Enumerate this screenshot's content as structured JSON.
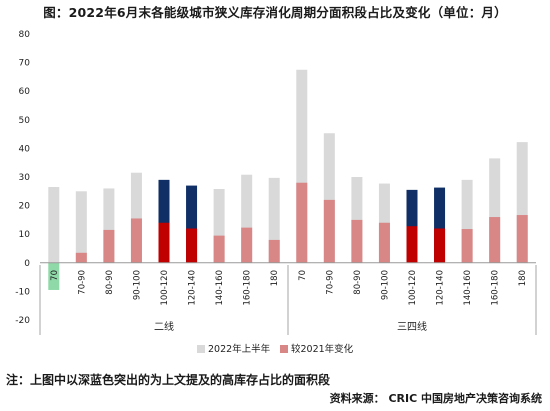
{
  "chart_data": {
    "type": "bar",
    "title": "图：2022年6月末各能级城市狭义库存消化周期分面积段占比及变化（单位：月）",
    "ylim": [
      -20,
      80
    ],
    "yticks": [
      -20,
      -10,
      0,
      10,
      20,
      30,
      40,
      50,
      60,
      70,
      80
    ],
    "grid": false,
    "legend_position": "bottom",
    "groups": [
      {
        "name": "二线",
        "categories": [
          "70",
          "70-90",
          "80-90",
          "90-100",
          "100-120",
          "120-140",
          "140-160",
          "160-180",
          "180"
        ]
      },
      {
        "name": "三四线",
        "categories": [
          "70",
          "70-90",
          "80-90",
          "90-100",
          "100-120",
          "120-140",
          "140-160",
          "160-180",
          "180"
        ]
      }
    ],
    "categories": [
      "70",
      "70-90",
      "80-90",
      "90-100",
      "100-120",
      "120-140",
      "140-160",
      "160-180",
      "180",
      "70",
      "70-90",
      "80-90",
      "90-100",
      "100-120",
      "120-140",
      "140-160",
      "160-180",
      "180"
    ],
    "series": [
      {
        "name": "2022年上半年",
        "color": "#d9d9d9",
        "values": [
          26.5,
          25,
          26,
          31.5,
          29,
          27,
          25.8,
          30.8,
          29.7,
          67.5,
          45.3,
          30,
          27.7,
          25.5,
          26.3,
          29,
          36.5,
          42.2
        ],
        "highlight": [
          false,
          false,
          false,
          false,
          true,
          true,
          false,
          false,
          false,
          false,
          false,
          false,
          false,
          true,
          true,
          false,
          false,
          false
        ],
        "highlight_color": "#0f2f66"
      },
      {
        "name": "较2021年变化",
        "color": "#d98686",
        "values": [
          -9.5,
          3.5,
          11.5,
          15.5,
          14,
          12,
          9.5,
          12.3,
          8,
          28,
          22,
          15,
          14,
          12.8,
          12,
          11.8,
          16,
          16.7
        ],
        "highlight": [
          false,
          false,
          false,
          false,
          true,
          true,
          false,
          false,
          false,
          false,
          false,
          false,
          false,
          true,
          true,
          false,
          false,
          false
        ],
        "highlight_color": "#c00000",
        "negative_color": "#8fd9a8"
      }
    ]
  },
  "note": "注：上图中以深蓝色突出的为上文提及的高库存占比的面积段",
  "source": "资料来源：  CRIC 中国房地产决策咨询系统"
}
